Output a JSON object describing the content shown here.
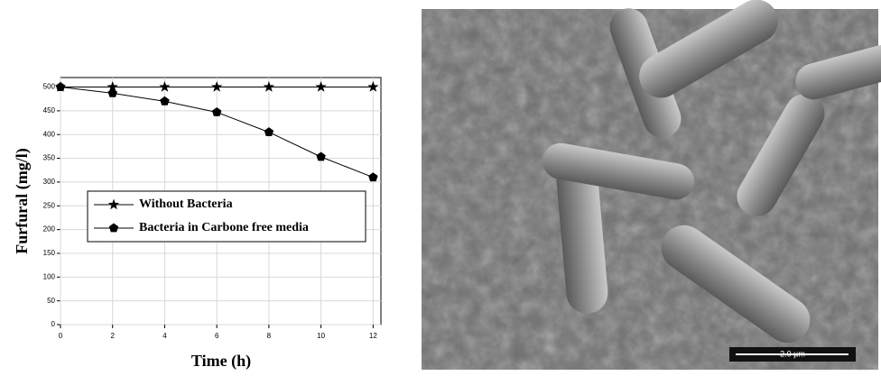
{
  "chart_data": {
    "type": "line",
    "xlabel": "Time (h)",
    "ylabel": "Furfural (mg/l)",
    "x": [
      0,
      2,
      4,
      6,
      8,
      10,
      12
    ],
    "series": [
      {
        "name": "Without Bacteria",
        "color": "#000000",
        "marker": "star",
        "values": [
          500,
          500,
          500,
          500,
          500,
          500,
          500
        ]
      },
      {
        "name": "Bacteria in Carbone free media",
        "color": "#000000",
        "marker": "pentagon",
        "values": [
          500,
          487,
          470,
          447,
          405,
          353,
          310
        ]
      }
    ],
    "xlim": [
      0,
      12.3
    ],
    "ylim": [
      0,
      520
    ],
    "xticks": [
      0,
      2,
      4,
      6,
      8,
      10,
      12
    ],
    "yticks": [
      0,
      50,
      100,
      150,
      200,
      250,
      300,
      350,
      400,
      450,
      500
    ],
    "grid": true
  },
  "image": {
    "scale_bar": "2.0 µm"
  }
}
